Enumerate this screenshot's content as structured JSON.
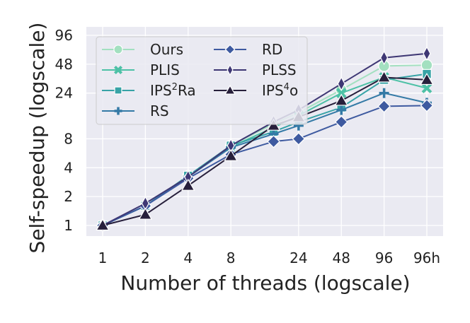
{
  "chart_data": {
    "type": "line",
    "title": "",
    "xlabel": "Number of threads (logscale)",
    "ylabel": "Self-speedup (logscale)",
    "x_scale": "log",
    "y_scale": "log",
    "categories": [
      "1",
      "2",
      "4",
      "8",
      "24",
      "48",
      "96",
      "96h"
    ],
    "x": [
      1,
      2,
      4,
      8,
      16,
      24,
      48,
      96,
      192
    ],
    "yticks": [
      1,
      2,
      4,
      8,
      24,
      48,
      96
    ],
    "ylim": [
      0.85,
      120
    ],
    "grid": true,
    "legend": {
      "placement": "top-left",
      "columns": 2
    },
    "series": [
      {
        "name": "Ours",
        "marker": "circle",
        "color": "#a3e0c0",
        "values": [
          1,
          1.6,
          3.3,
          6.8,
          11.5,
          15,
          26,
          46,
          47
        ]
      },
      {
        "name": "PLIS",
        "marker": "x",
        "color": "#4dc1a6",
        "values": [
          1,
          1.6,
          3.3,
          6.6,
          10.5,
          14,
          24,
          35,
          27
        ]
      },
      {
        "name": "IPS²Ra",
        "name_base": "IPS",
        "name_sup": "2",
        "name_tail": "Ra",
        "marker": "square",
        "color": "#37a3a6",
        "values": [
          1,
          1.6,
          3.3,
          6.8,
          9.5,
          12,
          17,
          33,
          38
        ]
      },
      {
        "name": "RS",
        "marker": "plus",
        "color": "#347aa6",
        "values": [
          1,
          1.6,
          3.2,
          6.5,
          9,
          11,
          16,
          24,
          19
        ]
      },
      {
        "name": "RD",
        "marker": "diamond",
        "color": "#3e5aa0",
        "values": [
          1,
          1.6,
          3.1,
          5.5,
          7.5,
          8,
          12,
          17.5,
          17.8
        ]
      },
      {
        "name": "PLSS",
        "marker": "thin_diamond",
        "color": "#3e3774",
        "values": [
          1,
          1.7,
          3.2,
          6.8,
          12,
          16,
          30,
          56,
          62
        ]
      },
      {
        "name": "IPS⁴o",
        "name_base": "IPS",
        "name_sup": "4",
        "name_tail": "o",
        "marker": "triangle",
        "color": "#271f3b",
        "values": [
          1,
          1.3,
          2.6,
          5.3,
          11,
          13.5,
          20,
          35,
          33
        ]
      }
    ],
    "colors": {
      "plot_bg": "#eaeaf2",
      "grid": "#ffffff"
    }
  }
}
